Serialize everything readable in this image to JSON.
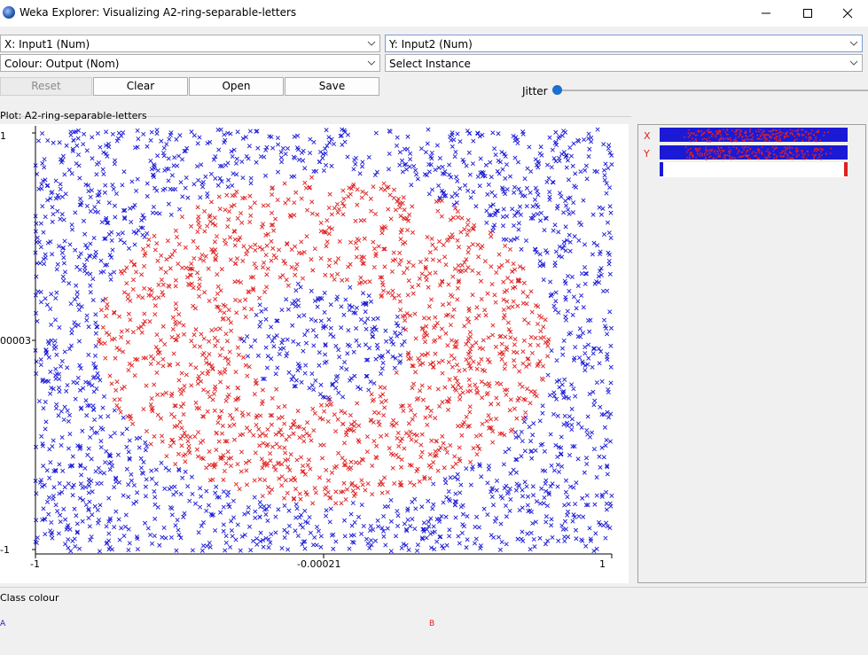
{
  "window": {
    "title": "Weka Explorer: Visualizing A2-ring-separable-letters"
  },
  "controls": {
    "x_axis": "X: Input1 (Num)",
    "y_axis": "Y: Input2 (Num)",
    "colour": "Colour: Output (Nom)",
    "instance": "Select Instance",
    "buttons": {
      "reset": "Reset",
      "clear": "Clear",
      "open": "Open",
      "save": "Save"
    },
    "jitter_label": "Jitter",
    "jitter_value": 0
  },
  "plot": {
    "caption": "Plot: A2-ring-separable-letters",
    "x_ticks": [
      "-1",
      "-0.00021",
      "1"
    ],
    "y_ticks": [
      "1",
      "00003",
      "-1"
    ]
  },
  "attribute_bars": {
    "x_label": "X",
    "y_label": "Y"
  },
  "class_colour": {
    "caption": "Class colour",
    "classes": [
      {
        "label": "A",
        "color": "#1a1ad6"
      },
      {
        "label": "B",
        "color": "#e02020"
      }
    ]
  },
  "chart_data": {
    "type": "scatter",
    "title": "Plot: A2-ring-separable-letters",
    "xlabel": "Input1",
    "ylabel": "Input2",
    "xlim": [
      -1,
      1
    ],
    "ylim": [
      -1,
      1
    ],
    "x_ticks": [
      "-1",
      "-0.00021",
      "1"
    ],
    "y_ticks": [
      "1",
      "00003",
      "-1"
    ],
    "marker": "x",
    "series": [
      {
        "name": "A",
        "color": "#1a1ad6",
        "region": "outside ring (r > 0.88) and inner core (r < 0.32)"
      },
      {
        "name": "B",
        "color": "#e02020",
        "region": "ring band (0.32 < r < 0.88)"
      }
    ]
  }
}
